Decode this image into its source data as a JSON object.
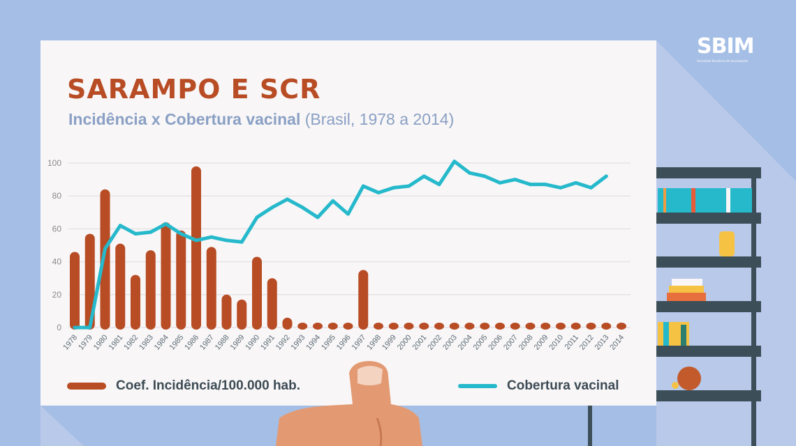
{
  "logo": {
    "text": "SBIM",
    "subtitle": "Sociedade Brasileira de Imunizações"
  },
  "chart_data": {
    "type": "bar+line",
    "title": "SARAMPO E SCR",
    "subtitle_bold": "Incidência x Cobertura vacinal",
    "subtitle_rest": "(Brasil, 1978 a 2014)",
    "ylim": [
      0,
      100
    ],
    "yticks": [
      0,
      20,
      40,
      60,
      80,
      100
    ],
    "grid": true,
    "categories": [
      "1978",
      "1979",
      "1980",
      "1981",
      "1982",
      "1983",
      "1984",
      "1985",
      "1986",
      "1987",
      "1988",
      "1989",
      "1990",
      "1991",
      "1992",
      "1993",
      "1994",
      "1995",
      "1996",
      "1997",
      "1998",
      "1999",
      "2000",
      "2001",
      "2002",
      "2003",
      "2004",
      "2005",
      "2006",
      "2007",
      "2008",
      "2009",
      "2010",
      "2011",
      "2012",
      "2013",
      "2014"
    ],
    "series": [
      {
        "name": "Coef. Incidência/100.000 hab.",
        "type": "bar",
        "color": "#b84c24",
        "values": [
          46,
          57,
          84,
          51,
          32,
          47,
          64,
          59,
          98,
          49,
          20,
          17,
          43,
          30,
          6,
          2,
          1,
          1,
          1,
          35,
          2,
          0.5,
          0.5,
          0.5,
          0.5,
          0.5,
          0.5,
          0.5,
          0.5,
          0.5,
          0.5,
          0.5,
          0.5,
          0.5,
          0.5,
          0.5,
          0.5
        ]
      },
      {
        "name": "Cobertura vacinal",
        "type": "line",
        "color": "#25b9cb",
        "values": [
          0,
          0,
          48,
          62,
          57,
          58,
          63,
          57,
          53,
          55,
          53,
          52,
          67,
          73,
          78,
          73,
          67,
          77,
          69,
          86,
          82,
          85,
          86,
          92,
          87,
          101,
          94,
          92,
          88,
          90,
          87,
          87,
          85,
          88,
          85,
          92,
          null
        ]
      }
    ],
    "legend_position": "bottom"
  }
}
